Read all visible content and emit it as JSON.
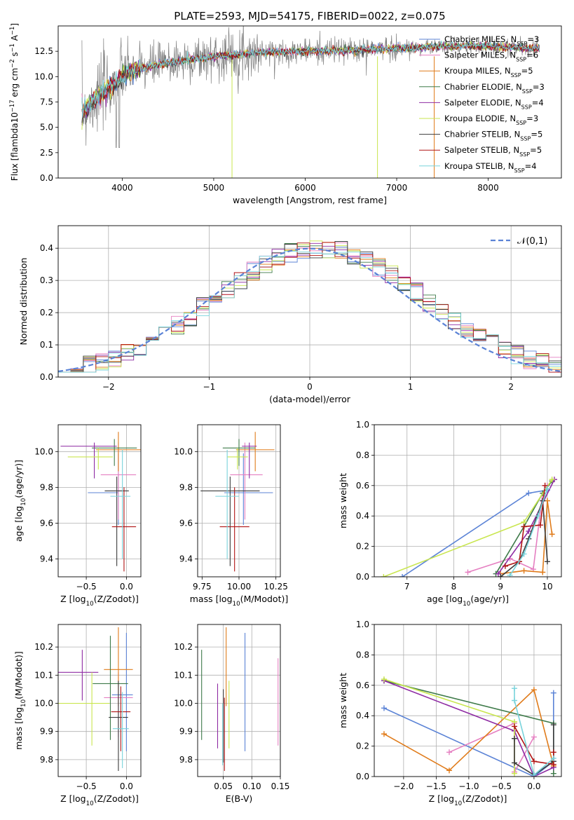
{
  "colors": {
    "Chabrier MILES": "#5b83d6",
    "Salpeter MILES": "#e57fc1",
    "Kroupa MILES": "#e07b1a",
    "Chabrier ELODIE": "#3e7a49",
    "Salpeter ELODIE": "#8e2ba3",
    "Kroupa ELODIE": "#c9e64f",
    "Chabrier STELIB": "#3b3b3b",
    "Salpeter STELIB": "#b01414",
    "Kroupa STELIB": "#78d3db"
  },
  "chart_data": [
    {
      "id": "spectrum",
      "type": "line",
      "title": "PLATE=2593, MJD=54175, FIBERID=0022, z=0.075",
      "xlabel": "wavelength [Angstrom, rest frame]",
      "ylabel": "Flux [f$_\\lambda$10$^{-17}$ erg cm$^{-2}$ s$^{-1}$ A$^{-1}$]",
      "xlim": [
        3300,
        8800
      ],
      "ylim": [
        0,
        15
      ],
      "xticks": [
        4000,
        5000,
        6000,
        7000,
        8000
      ],
      "xticklabels": [
        "4000",
        "5000",
        "6000",
        "7000",
        "8000"
      ],
      "yticks": [
        0,
        2.5,
        5,
        7.5,
        10,
        12.5
      ],
      "yticklabels": [
        "0.0",
        "2.5",
        "5.0",
        "7.5",
        "10.0",
        "12.5"
      ],
      "grid": false,
      "legend": "top-right",
      "data_envelope": {
        "x": [
          3560,
          3700,
          3900,
          4100,
          4300,
          4600,
          5000,
          5500,
          6000,
          6500,
          7000,
          7500,
          8000,
          8500
        ],
        "y": [
          6.5,
          7.8,
          9.2,
          10.6,
          11.0,
          11.5,
          12.0,
          12.4,
          12.5,
          12.6,
          12.8,
          13.0,
          13.0,
          12.8
        ]
      },
      "series": [
        {
          "name": "Chabrier MILES",
          "nssp": "3"
        },
        {
          "name": "Salpeter MILES",
          "nssp": "6"
        },
        {
          "name": "Kroupa MILES",
          "nssp": "5"
        },
        {
          "name": "Chabrier ELODIE",
          "nssp": "3"
        },
        {
          "name": "Salpeter ELODIE",
          "nssp": "4"
        },
        {
          "name": "Kroupa ELODIE",
          "nssp": "3"
        },
        {
          "name": "Chabrier STELIB",
          "nssp": "5"
        },
        {
          "name": "Salpeter STELIB",
          "nssp": "5"
        },
        {
          "name": "Kroupa STELIB",
          "nssp": "4"
        }
      ]
    },
    {
      "id": "residuals",
      "type": "line",
      "xlabel": "(data-model)/error",
      "ylabel": "Normed distribution",
      "xlim": [
        -2.5,
        2.5
      ],
      "ylim": [
        0,
        0.47
      ],
      "xticks": [
        -2,
        -1,
        0,
        1,
        2
      ],
      "xticklabels": [
        "−2",
        "−1",
        "0",
        "1",
        "2"
      ],
      "yticks": [
        0,
        0.1,
        0.2,
        0.3,
        0.4
      ],
      "yticklabels": [
        "0.0",
        "0.1",
        "0.2",
        "0.3",
        "0.4"
      ],
      "grid": true,
      "legend": "top-right",
      "gauss_label": "$\\mathcal{N}(0,1)$",
      "bins": 40
    },
    {
      "id": "age_vs_Z",
      "type": "scatter",
      "xlabel": "Z [log$_{10}$(Z/Z$_\\odot$)]",
      "ylabel": "age  [log$_{10}$(age/yr)]",
      "xlim": [
        -0.85,
        0.18
      ],
      "ylim": [
        9.3,
        10.15
      ],
      "xticks": [
        -0.5,
        0.0
      ],
      "xticklabels": [
        "−0.5",
        "0.0"
      ],
      "yticks": [
        9.4,
        9.6,
        9.8,
        10.0
      ],
      "yticklabels": [
        "9.4",
        "9.6",
        "9.8",
        "10.0"
      ],
      "grid": true,
      "points": [
        {
          "s": "Chabrier MILES",
          "x": -0.1,
          "xerr": [
            0.38,
            0.0
          ],
          "y": 9.77,
          "yerr": [
            0.18,
            0.22
          ]
        },
        {
          "s": "Salpeter MILES",
          "x": -0.1,
          "xerr": [
            0.22,
            0.22
          ],
          "y": 9.87,
          "yerr": [
            0.25,
            0.18
          ]
        },
        {
          "s": "Kroupa MILES",
          "x": -0.1,
          "xerr": [
            0.28,
            0.28
          ],
          "y": 10.01,
          "yerr": [
            0.12,
            0.1
          ]
        },
        {
          "s": "Chabrier ELODIE",
          "x": -0.15,
          "xerr": [
            0.28,
            0.28
          ],
          "y": 10.02,
          "yerr": [
            0.1,
            0.05
          ]
        },
        {
          "s": "Salpeter ELODIE",
          "x": -0.4,
          "xerr": [
            0.42,
            0.28
          ],
          "y": 10.03,
          "yerr": [
            0.18,
            0.02
          ]
        },
        {
          "s": "Kroupa ELODIE",
          "x": -0.35,
          "xerr": [
            0.38,
            0.18
          ],
          "y": 9.97,
          "yerr": [
            0.07,
            0.05
          ]
        },
        {
          "s": "Chabrier STELIB",
          "x": -0.12,
          "xerr": [
            0.15,
            0.15
          ],
          "y": 9.78,
          "yerr": [
            0.42,
            0.08
          ]
        },
        {
          "s": "Salpeter STELIB",
          "x": -0.03,
          "xerr": [
            0.15,
            0.15
          ],
          "y": 9.58,
          "yerr": [
            0.25,
            0.22
          ]
        },
        {
          "s": "Kroupa STELIB",
          "x": -0.05,
          "xerr": [
            0.15,
            0.1
          ],
          "y": 9.75,
          "yerr": [
            0.35,
            0.26
          ]
        }
      ]
    },
    {
      "id": "age_vs_mass",
      "type": "scatter",
      "xlabel": "mass [log$_{10}$($M/M_\\odot$)]",
      "xlim": [
        9.72,
        10.28
      ],
      "ylim": [
        9.3,
        10.15
      ],
      "xticks": [
        9.75,
        10.0,
        10.25
      ],
      "xticklabels": [
        "9.75",
        "10.00",
        "10.25"
      ],
      "yticks": [
        9.4,
        9.6,
        9.8,
        10.0
      ],
      "yticklabels": [
        "9.4",
        "9.6",
        "9.8",
        "10.0"
      ],
      "grid": true,
      "points": [
        {
          "s": "Chabrier MILES",
          "x": 10.03,
          "xerr": [
            0.13,
            0.2
          ],
          "y": 9.77,
          "yerr": [
            0.18,
            0.22
          ]
        },
        {
          "s": "Salpeter MILES",
          "x": 10.04,
          "xerr": [
            0.1,
            0.12
          ],
          "y": 9.87,
          "yerr": [
            0.25,
            0.18
          ]
        },
        {
          "s": "Kroupa MILES",
          "x": 10.11,
          "xerr": [
            0.13,
            0.13
          ],
          "y": 10.01,
          "yerr": [
            0.12,
            0.1
          ]
        },
        {
          "s": "Chabrier ELODIE",
          "x": 10.0,
          "xerr": [
            0.11,
            0.11
          ],
          "y": 10.02,
          "yerr": [
            0.1,
            0.05
          ]
        },
        {
          "s": "Salpeter ELODIE",
          "x": 10.07,
          "xerr": [
            0.05,
            0.05
          ],
          "y": 10.03,
          "yerr": [
            0.18,
            0.02
          ]
        },
        {
          "s": "Kroupa ELODIE",
          "x": 9.99,
          "xerr": [
            0.07,
            0.07
          ],
          "y": 9.97,
          "yerr": [
            0.07,
            0.05
          ]
        },
        {
          "s": "Chabrier STELIB",
          "x": 9.94,
          "xerr": [
            0.2,
            0.2
          ],
          "y": 9.78,
          "yerr": [
            0.42,
            0.08
          ]
        },
        {
          "s": "Salpeter STELIB",
          "x": 9.97,
          "xerr": [
            0.1,
            0.1
          ],
          "y": 9.58,
          "yerr": [
            0.25,
            0.22
          ]
        },
        {
          "s": "Kroupa STELIB",
          "x": 9.92,
          "xerr": [
            0.08,
            0.08
          ],
          "y": 9.75,
          "yerr": [
            0.35,
            0.26
          ]
        }
      ]
    },
    {
      "id": "massweight_vs_age",
      "type": "line",
      "xlabel": "age  [log$_{10}$(age/yr)]",
      "ylabel": "mass weight",
      "xlim": [
        6.3,
        10.3
      ],
      "ylim": [
        0,
        1
      ],
      "xticks": [
        7,
        8,
        9,
        10
      ],
      "xticklabels": [
        "7",
        "8",
        "9",
        "10"
      ],
      "yticks": [
        0,
        0.2,
        0.4,
        0.6,
        0.8,
        1.0
      ],
      "yticklabels": [
        "0.0",
        "0.2",
        "0.4",
        "0.6",
        "0.8",
        "1.0"
      ],
      "grid": true,
      "series": [
        {
          "name": "Chabrier MILES",
          "x": [
            6.9,
            9.6,
            10.0
          ],
          "y": [
            0.0,
            0.55,
            0.57
          ]
        },
        {
          "name": "Salpeter MILES",
          "x": [
            8.3,
            9.2,
            9.7,
            9.9,
            10.0
          ],
          "y": [
            0.03,
            0.12,
            0.05,
            0.55,
            0.6
          ]
        },
        {
          "name": "Kroupa MILES",
          "x": [
            9.0,
            9.5,
            9.9,
            10.0,
            10.1
          ],
          "y": [
            0.02,
            0.04,
            0.03,
            0.5,
            0.28
          ]
        },
        {
          "name": "Chabrier ELODIE",
          "x": [
            8.9,
            9.5,
            9.9,
            10.1
          ],
          "y": [
            0.02,
            0.33,
            0.55,
            0.63
          ]
        },
        {
          "name": "Salpeter ELODIE",
          "x": [
            8.95,
            9.6,
            10.15
          ],
          "y": [
            0.02,
            0.3,
            0.64
          ]
        },
        {
          "name": "Kroupa ELODIE",
          "x": [
            6.5,
            9.5,
            10.1
          ],
          "y": [
            0.0,
            0.36,
            0.64
          ]
        },
        {
          "name": "Chabrier STELIB",
          "x": [
            9.0,
            9.4,
            9.6,
            9.9,
            10.0
          ],
          "y": [
            0.0,
            0.1,
            0.25,
            0.5,
            0.1
          ]
        },
        {
          "name": "Salpeter STELIB",
          "x": [
            9.1,
            9.4,
            9.5,
            9.85,
            9.95
          ],
          "y": [
            0.07,
            0.1,
            0.33,
            0.34,
            0.6
          ]
        },
        {
          "name": "Kroupa STELIB",
          "x": [
            9.2,
            9.5,
            9.8,
            10.0
          ],
          "y": [
            0.01,
            0.15,
            0.4,
            0.58
          ]
        }
      ]
    },
    {
      "id": "mass_vs_Z",
      "type": "scatter",
      "xlabel": "Z [log$_{10}$(Z/Z$_\\odot$)]",
      "ylabel": "mass [log$_{10}$($M/M_\\odot$)]",
      "xlim": [
        -0.85,
        0.18
      ],
      "ylim": [
        9.74,
        10.28
      ],
      "xticks": [
        -0.5,
        0.0
      ],
      "xticklabels": [
        "−0.5",
        "0.0"
      ],
      "yticks": [
        9.8,
        9.9,
        10.0,
        10.1,
        10.2
      ],
      "yticklabels": [
        "9.8",
        "9.9",
        "10.0",
        "10.1",
        "10.2"
      ],
      "grid": true,
      "points": [
        {
          "s": "Chabrier MILES",
          "x": 0.0,
          "xerr": [
            0.18,
            0.08
          ],
          "y": 10.03,
          "yerr": [
            0.2,
            0.22
          ]
        },
        {
          "s": "Salpeter MILES",
          "x": -0.1,
          "xerr": [
            0.18,
            0.18
          ],
          "y": 10.02,
          "yerr": [
            0.14,
            0.09
          ]
        },
        {
          "s": "Kroupa MILES",
          "x": -0.1,
          "xerr": [
            0.18,
            0.18
          ],
          "y": 10.12,
          "yerr": [
            0.13,
            0.15
          ]
        },
        {
          "s": "Chabrier ELODIE",
          "x": -0.2,
          "xerr": [
            0.22,
            0.22
          ],
          "y": 10.07,
          "yerr": [
            0.2,
            0.17
          ]
        },
        {
          "s": "Salpeter ELODIE",
          "x": -0.55,
          "xerr": [
            0.3,
            0.2
          ],
          "y": 10.11,
          "yerr": [
            0.1,
            0.08
          ]
        },
        {
          "s": "Kroupa ELODIE",
          "x": -0.43,
          "xerr": [
            0.42,
            0.22
          ],
          "y": 10.0,
          "yerr": [
            0.15,
            0.11
          ]
        },
        {
          "s": "Chabrier STELIB",
          "x": -0.1,
          "xerr": [
            0.12,
            0.12
          ],
          "y": 9.95,
          "yerr": [
            0.19,
            0.13
          ]
        },
        {
          "s": "Salpeter STELIB",
          "x": -0.07,
          "xerr": [
            0.12,
            0.12
          ],
          "y": 9.97,
          "yerr": [
            0.14,
            0.09
          ]
        },
        {
          "s": "Kroupa STELIB",
          "x": -0.05,
          "xerr": [
            0.12,
            0.08
          ],
          "y": 9.91,
          "yerr": [
            0.14,
            0.13
          ]
        }
      ]
    },
    {
      "id": "mass_vs_ebv",
      "type": "scatter",
      "xlabel": "E(B-V)",
      "xlim": [
        0.005,
        0.15
      ],
      "ylim": [
        9.74,
        10.28
      ],
      "xticks": [
        0.05,
        0.1,
        0.15
      ],
      "xticklabels": [
        "0.05",
        "0.10",
        "0.15"
      ],
      "yticks": [
        9.8,
        9.9,
        10.0,
        10.1,
        10.2
      ],
      "yticklabels": [
        "9.8",
        "9.9",
        "10.0",
        "10.1",
        "10.2"
      ],
      "grid": true,
      "points": [
        {
          "s": "Chabrier MILES",
          "x": 0.088,
          "y": 10.03,
          "yerr": [
            0.2,
            0.22
          ]
        },
        {
          "s": "Salpeter MILES",
          "x": 0.146,
          "y": 10.0,
          "yerr": [
            0.15,
            0.16
          ]
        },
        {
          "s": "Kroupa MILES",
          "x": 0.055,
          "y": 10.12,
          "yerr": [
            0.13,
            0.15
          ]
        },
        {
          "s": "Chabrier ELODIE",
          "x": 0.012,
          "y": 10.03,
          "yerr": [
            0.16,
            0.16
          ]
        },
        {
          "s": "Salpeter ELODIE",
          "x": 0.04,
          "y": 9.96,
          "yerr": [
            0.12,
            0.11
          ]
        },
        {
          "s": "Kroupa ELODIE",
          "x": 0.06,
          "y": 9.97,
          "yerr": [
            0.13,
            0.11
          ]
        },
        {
          "s": "Chabrier STELIB",
          "x": 0.05,
          "y": 9.95,
          "yerr": [
            0.16,
            0.1
          ]
        },
        {
          "s": "Salpeter STELIB",
          "x": 0.052,
          "y": 9.93,
          "yerr": [
            0.17,
            0.09
          ]
        },
        {
          "s": "Kroupa STELIB",
          "x": 0.049,
          "y": 9.9,
          "yerr": [
            0.12,
            0.1
          ]
        }
      ]
    },
    {
      "id": "massweight_vs_Z",
      "type": "line",
      "xlabel": "Z [log$_{10}$(Z/Z$_\\odot$)]",
      "ylabel": "mass weight",
      "xlim": [
        -2.45,
        0.42
      ],
      "ylim": [
        0,
        1
      ],
      "xticks": [
        -2.0,
        -1.5,
        -1.0,
        -0.5,
        0.0
      ],
      "xticklabels": [
        "−2.0",
        "−1.5",
        "−1.0",
        "−0.5",
        "0.0"
      ],
      "yticks": [
        0,
        0.2,
        0.4,
        0.6,
        0.8,
        1.0
      ],
      "yticklabels": [
        "0.0",
        "0.2",
        "0.4",
        "0.6",
        "0.8",
        "1.0"
      ],
      "grid": true,
      "series": [
        {
          "name": "Chabrier MILES",
          "x": [
            -2.3,
            0.0,
            0.3,
            0.3
          ],
          "y": [
            0.45,
            0.0,
            0.1,
            0.55
          ]
        },
        {
          "name": "Salpeter MILES",
          "x": [
            -1.3,
            -0.3,
            -0.3,
            0.0
          ],
          "y": [
            0.16,
            0.35,
            0.03,
            0.26
          ]
        },
        {
          "name": "Kroupa MILES",
          "x": [
            -2.3,
            -1.3,
            0.0,
            0.3
          ],
          "y": [
            0.28,
            0.04,
            0.57,
            0.07
          ]
        },
        {
          "name": "Chabrier ELODIE",
          "x": [
            -2.3,
            0.3,
            0.3
          ],
          "y": [
            0.63,
            0.35,
            0.02
          ]
        },
        {
          "name": "Salpeter ELODIE",
          "x": [
            -2.3,
            -0.3,
            0.0,
            0.3
          ],
          "y": [
            0.63,
            0.3,
            0.0,
            0.06
          ]
        },
        {
          "name": "Kroupa ELODIE",
          "x": [
            -2.3,
            -0.3,
            -0.3
          ],
          "y": [
            0.64,
            0.36,
            0.02
          ]
        },
        {
          "name": "Chabrier STELIB",
          "x": [
            -0.3,
            -0.3,
            0.0,
            0.3,
            0.3
          ],
          "y": [
            0.25,
            0.09,
            0.01,
            0.1,
            0.34
          ]
        },
        {
          "name": "Salpeter STELIB",
          "x": [
            -0.3,
            0.0,
            0.3,
            0.3
          ],
          "y": [
            0.33,
            0.1,
            0.08,
            0.16
          ]
        },
        {
          "name": "Kroupa STELIB",
          "x": [
            -0.3,
            -0.3,
            0.0,
            0.3
          ],
          "y": [
            0.58,
            0.5,
            0.01,
            0.12
          ]
        }
      ]
    }
  ]
}
